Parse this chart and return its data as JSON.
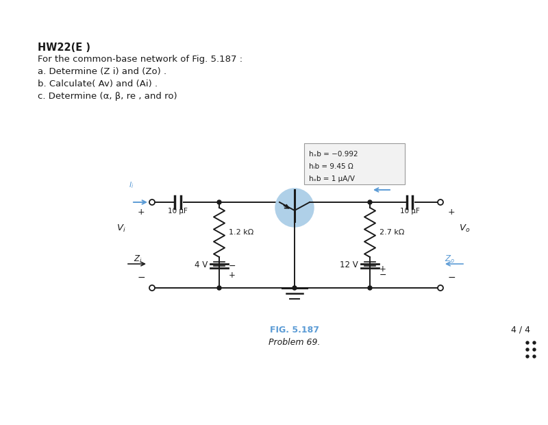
{
  "title_text": "HW22(E )",
  "problem_lines": [
    "For the common-base network of Fig. 5.187 :",
    "a. Determine (Z i) and (Zo) .",
    "b. Calculate( Av) and (Ai) .",
    "c. Determine (α, β, re , and ro)"
  ],
  "hfb": "hₓb = −0.992",
  "hib": "hᵢb = 9.45 Ω",
  "hob": "hₒb = 1 μA/V",
  "cap1_label": "10 μF",
  "cap2_label": "10 μF",
  "r1_label": "1.2 kΩ",
  "r2_label": "2.7 kΩ",
  "v1_label": "4 V",
  "v2_label": "12 V",
  "fig_label": "FIG. 5.187",
  "prob_label": "Problem 69.",
  "page_label": "4 / 4",
  "bg_color": "#ffffff",
  "circuit_color": "#1a1a1a",
  "blue_color": "#5b9bd5",
  "text_color": "#1a1a1a",
  "highlight_color": "#afd0e8"
}
